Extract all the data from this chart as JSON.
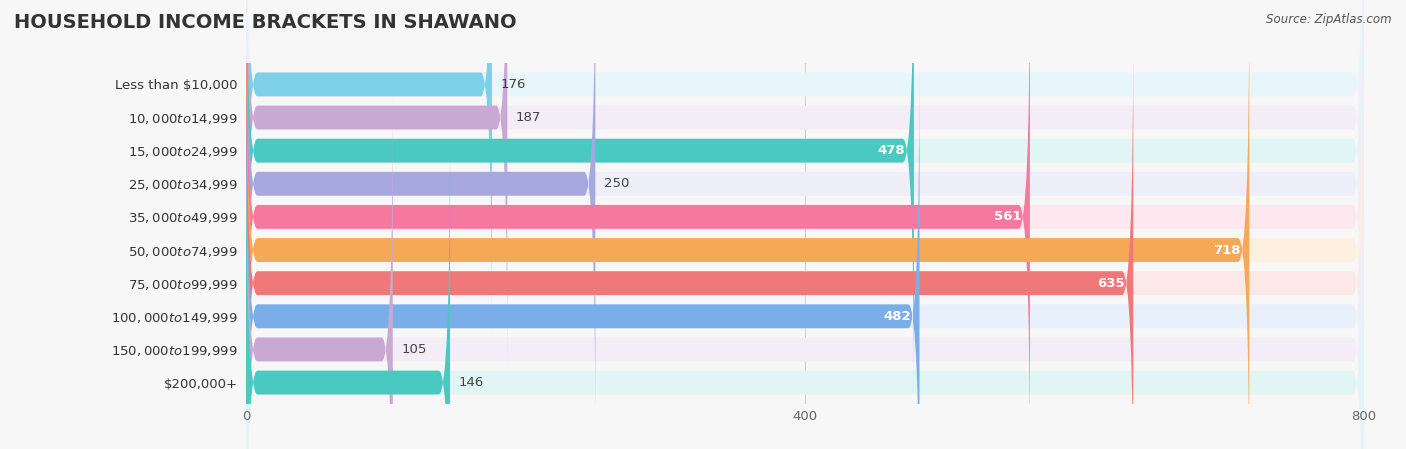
{
  "title": "HOUSEHOLD INCOME BRACKETS IN SHAWANO",
  "source": "Source: ZipAtlas.com",
  "categories": [
    "Less than $10,000",
    "$10,000 to $14,999",
    "$15,000 to $24,999",
    "$25,000 to $34,999",
    "$35,000 to $49,999",
    "$50,000 to $74,999",
    "$75,000 to $99,999",
    "$100,000 to $149,999",
    "$150,000 to $199,999",
    "$200,000+"
  ],
  "values": [
    176,
    187,
    478,
    250,
    561,
    718,
    635,
    482,
    105,
    146
  ],
  "bar_colors": [
    "#7ecfea",
    "#c9a8d4",
    "#4ac9c0",
    "#a8a8e0",
    "#f478a0",
    "#f5a855",
    "#f07878",
    "#7aaee8",
    "#c9a8d4",
    "#4ac9c0"
  ],
  "bar_bg_colors": [
    "#e8f6fc",
    "#f3edf8",
    "#e0f5f4",
    "#eeeef8",
    "#fde8ef",
    "#fdf0e0",
    "#fde8e8",
    "#e8f0fc",
    "#f3edf8",
    "#e0f5f4"
  ],
  "xlim": [
    0,
    800
  ],
  "xticks": [
    0,
    400,
    800
  ],
  "background_color": "#f7f7f7",
  "title_fontsize": 14,
  "label_fontsize": 9.5,
  "value_fontsize": 9.5,
  "value_threshold": 300
}
